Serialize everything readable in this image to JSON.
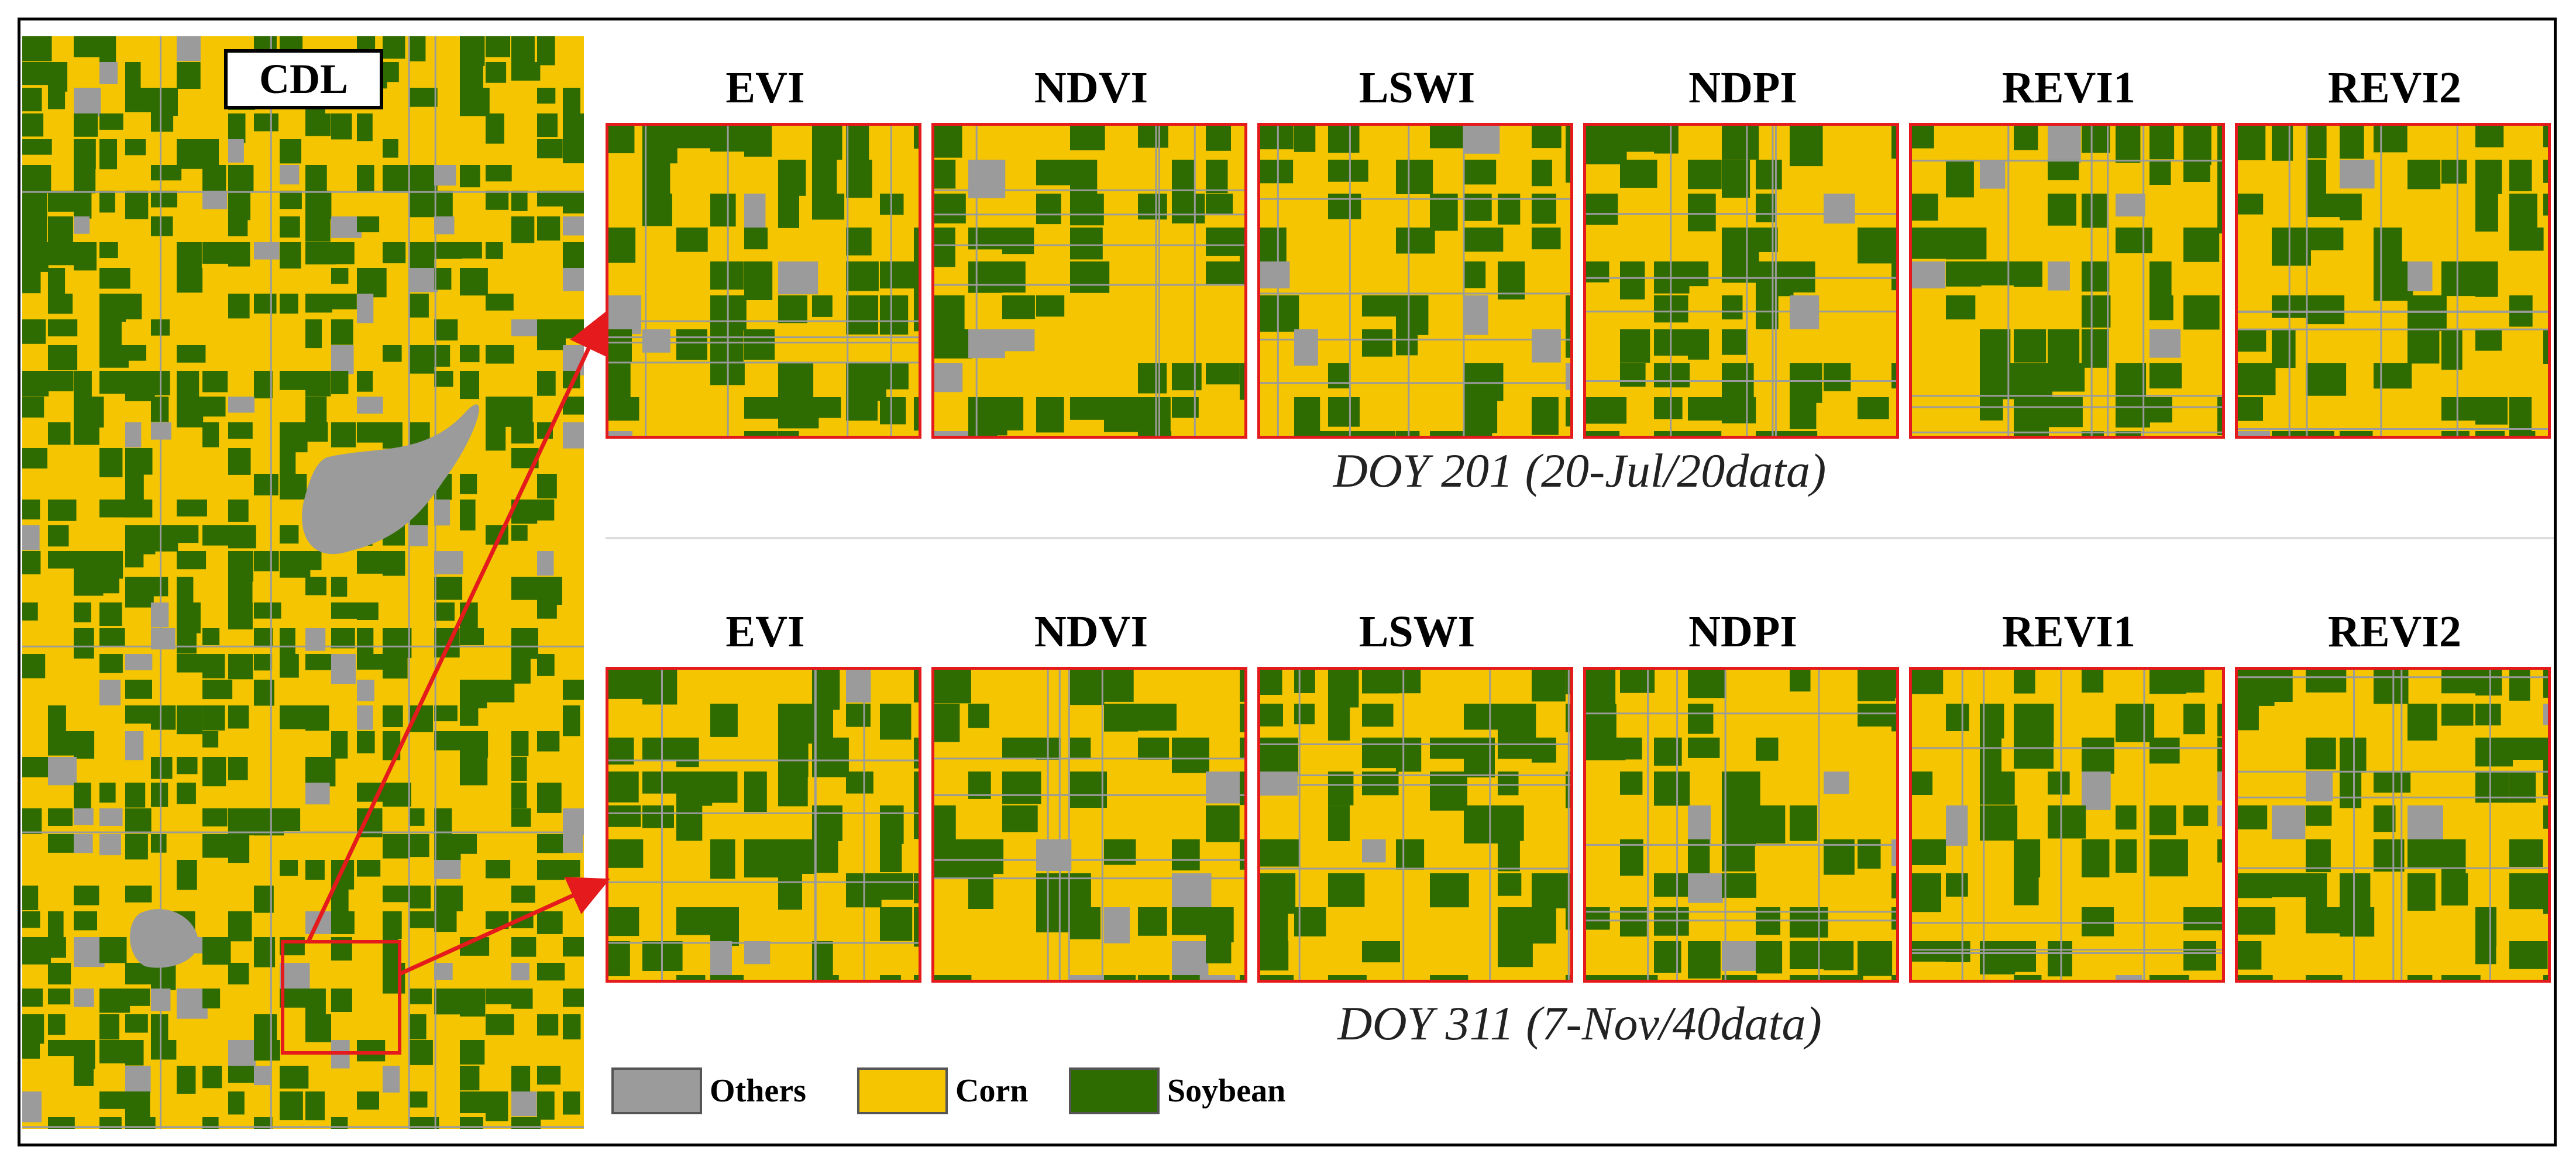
{
  "figure": {
    "overview_label": "CDL",
    "indices": [
      "EVI",
      "NDVI",
      "LSWI",
      "NDPI",
      "REVI1",
      "REVI2"
    ],
    "rows": [
      {
        "caption": "DOY 201 (20-Jul/20data)"
      },
      {
        "caption": "DOY 311 (7-Nov/40data)"
      }
    ],
    "legend": [
      {
        "label": "Others",
        "color": "#9b9b9b"
      },
      {
        "label": "Corn",
        "color": "#f4c500"
      },
      {
        "label": "Soybean",
        "color": "#2e6b00"
      }
    ],
    "colors": {
      "border": "#000000",
      "highlight": "#e41a1c",
      "others": "#9b9b9b",
      "corn": "#f4c500",
      "soybean": "#2e6b00"
    }
  }
}
